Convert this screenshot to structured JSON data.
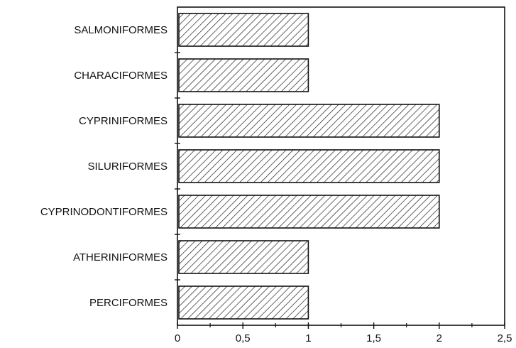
{
  "chart_data": {
    "type": "bar",
    "orientation": "horizontal",
    "title": "",
    "xlabel": "",
    "ylabel": "",
    "categories": [
      "SALMONIFORMES",
      "CHARACIFORMES",
      "CYPRINIFORMES",
      "SILURIFORMES",
      "CYPRINODONTIFORMES",
      "ATHERINIFORMES",
      "PERCIFORMES"
    ],
    "values": [
      1,
      1,
      2,
      2,
      2,
      1,
      1
    ],
    "xlim": [
      0,
      2.5
    ],
    "xticks": [
      0,
      0.5,
      1,
      1.5,
      2,
      2.5
    ],
    "xtick_labels": [
      "0",
      "0,5",
      "1",
      "1,5",
      "2",
      "2,5"
    ],
    "grid": false,
    "legend": "none",
    "bar_fill": "diagonal-hatch",
    "colors": {
      "axis": "#111111",
      "bar_stroke": "#111111",
      "hatch": "#222222",
      "background": "#ffffff"
    }
  }
}
